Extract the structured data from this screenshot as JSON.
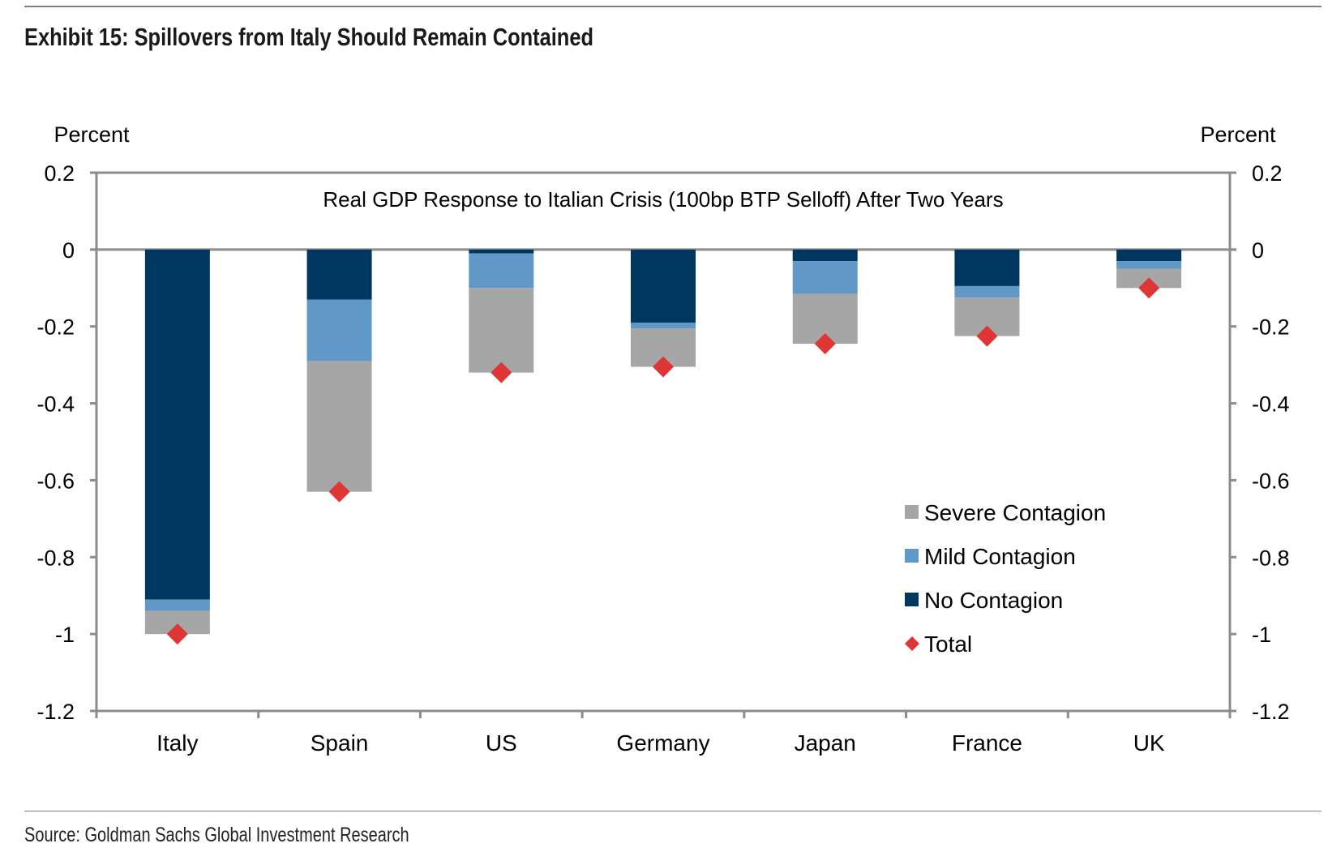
{
  "header": {
    "title": "Exhibit 15: Spillovers from Italy Should Remain Contained"
  },
  "footer": {
    "source": "Source: Goldman Sachs Global Investment Research"
  },
  "colors": {
    "severe": "#A6A6A6",
    "mild": "#6098C8",
    "none": "#00375F",
    "total": "#DE3535",
    "axis": "#8C8C8C"
  },
  "chart_data": {
    "type": "bar",
    "stacked": true,
    "title": "Real GDP Response to Italian Crisis (100bp BTP Selloff) After Two Years",
    "ylabel_left": "Percent",
    "ylabel_right": "Percent",
    "xlabel": "",
    "ylim": [
      -1.2,
      0.2
    ],
    "yticks": [
      0.2,
      0,
      -0.2,
      -0.4,
      -0.6,
      -0.8,
      -1,
      -1.2
    ],
    "ytick_labels": [
      "0.2",
      "0",
      "-0.2",
      "-0.4",
      "-0.6",
      "-0.8",
      "-1",
      "-1.2"
    ],
    "categories": [
      "Italy",
      "Spain",
      "US",
      "Germany",
      "Japan",
      "France",
      "UK"
    ],
    "series": [
      {
        "name": "No Contagion",
        "key": "none",
        "values": [
          -0.91,
          -0.13,
          -0.01,
          -0.19,
          -0.03,
          -0.095,
          -0.03
        ]
      },
      {
        "name": "Mild Contagion",
        "key": "mild",
        "values": [
          -0.03,
          -0.16,
          -0.09,
          -0.015,
          -0.085,
          -0.03,
          -0.02
        ]
      },
      {
        "name": "Severe Contagion",
        "key": "severe",
        "values": [
          -0.06,
          -0.34,
          -0.22,
          -0.1,
          -0.13,
          -0.1,
          -0.05
        ]
      }
    ],
    "total": {
      "name": "Total",
      "values": [
        -1.0,
        -0.63,
        -0.32,
        -0.305,
        -0.245,
        -0.225,
        -0.1
      ]
    },
    "legend": {
      "position": "lower-right",
      "items": [
        {
          "label": "Severe Contagion",
          "key": "severe",
          "marker": "square"
        },
        {
          "label": "Mild Contagion",
          "key": "mild",
          "marker": "square"
        },
        {
          "label": "No Contagion",
          "key": "none",
          "marker": "square"
        },
        {
          "label": "Total",
          "key": "total",
          "marker": "diamond"
        }
      ]
    },
    "grid": false
  }
}
